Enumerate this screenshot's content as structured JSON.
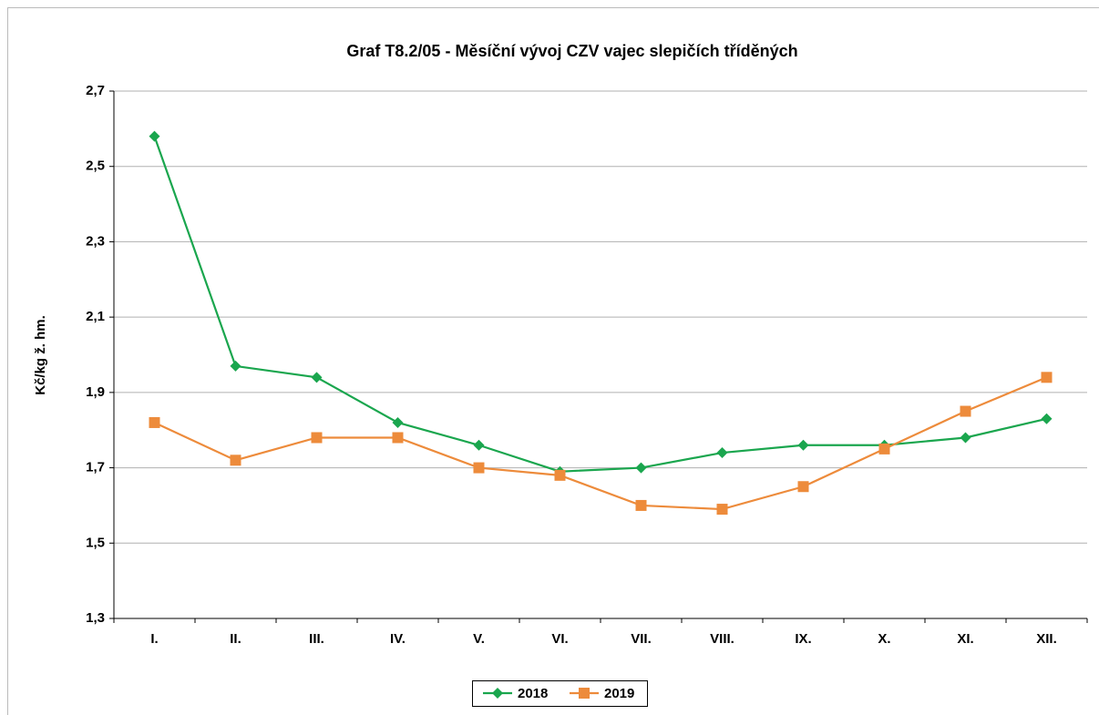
{
  "chart_data": {
    "type": "line",
    "title": "Graf T8.2/05 - Měsíční vývoj CZV vajec slepičích tříděných",
    "y_label": "Kč/kg ž. hm.",
    "categories": [
      "I.",
      "II.",
      "III.",
      "IV.",
      "V.",
      "VI.",
      "VII.",
      "VIII.",
      "IX.",
      "X.",
      "XI.",
      "XII."
    ],
    "series": [
      {
        "name": "2018",
        "color": "#1aa64e",
        "marker": "diamond",
        "values": [
          2.58,
          1.97,
          1.94,
          1.82,
          1.76,
          1.69,
          1.7,
          1.74,
          1.76,
          1.76,
          1.78,
          1.83
        ]
      },
      {
        "name": "2019",
        "color": "#ed8b3b",
        "marker": "square",
        "values": [
          1.82,
          1.72,
          1.78,
          1.78,
          1.7,
          1.68,
          1.6,
          1.59,
          1.65,
          1.75,
          1.85,
          1.94
        ]
      }
    ],
    "ylim": [
      1.3,
      2.7
    ],
    "yticks": [
      {
        "value": 1.3,
        "label": "1,3"
      },
      {
        "value": 1.5,
        "label": "1,5"
      },
      {
        "value": 1.7,
        "label": "1,7"
      },
      {
        "value": 1.9,
        "label": "1,9"
      },
      {
        "value": 2.1,
        "label": "2,1"
      },
      {
        "value": 2.3,
        "label": "2,3"
      },
      {
        "value": 2.5,
        "label": "2,5"
      },
      {
        "value": 2.7,
        "label": "2,7"
      }
    ],
    "grid": true,
    "legend": "bottom"
  }
}
